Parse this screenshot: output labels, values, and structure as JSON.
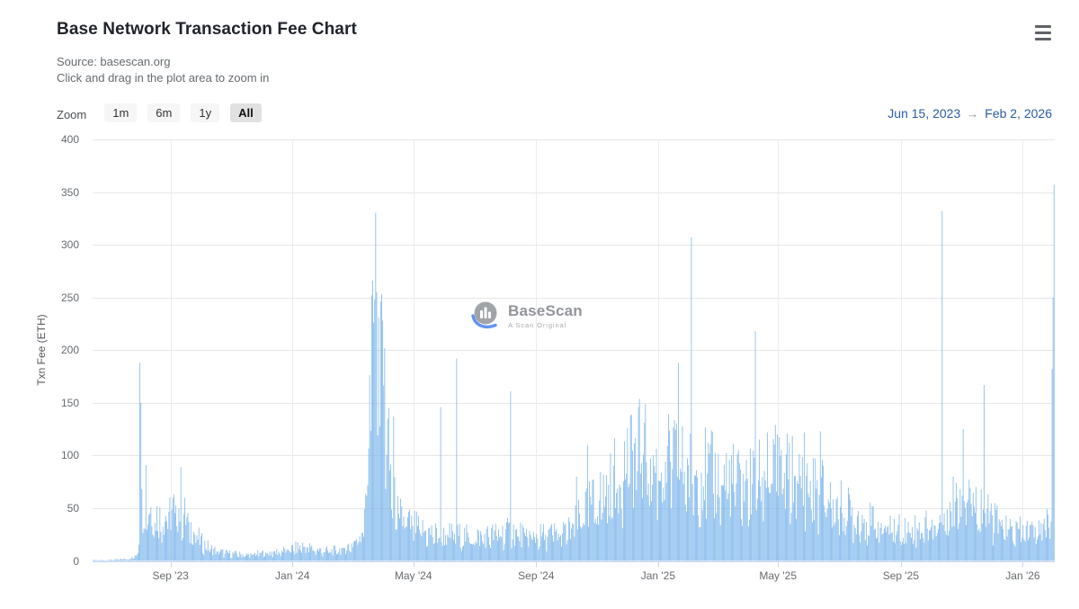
{
  "header": {
    "title": "Base Network Transaction Fee Chart"
  },
  "subtitle": {
    "source": "Source: basescan.org",
    "hint": "Click and drag in the plot area to zoom in"
  },
  "toolbar": {
    "zoom_label": "Zoom",
    "buttons": [
      {
        "label": "1m",
        "active": false
      },
      {
        "label": "6m",
        "active": false
      },
      {
        "label": "1y",
        "active": false
      },
      {
        "label": "All",
        "active": true
      }
    ]
  },
  "range": {
    "start": "Jun 15, 2023",
    "arrow": "→",
    "end": "Feb 2, 2026"
  },
  "watermark": {
    "name": "BaseScan",
    "tagline": "A Scan Original"
  },
  "chart_data": {
    "type": "bar",
    "title": "Base Network Transaction Fee Chart",
    "xlabel": "",
    "ylabel": "Txn Fee (ETH)",
    "unit": "ETH",
    "ylim": [
      0,
      400
    ],
    "grid": true,
    "legend": false,
    "y_ticks": [
      0,
      50,
      100,
      150,
      200,
      250,
      300,
      350,
      400
    ],
    "x_range": {
      "start": "Jun 15, 2023",
      "end": "Feb 2, 2026",
      "days": 963
    },
    "x_ticks": [
      {
        "label": "Sep '23",
        "day": 78
      },
      {
        "label": "Jan '24",
        "day": 200
      },
      {
        "label": "May '24",
        "day": 321
      },
      {
        "label": "Sep '24",
        "day": 444
      },
      {
        "label": "Jan '25",
        "day": 566
      },
      {
        "label": "May '25",
        "day": 686
      },
      {
        "label": "Sep '25",
        "day": 809
      },
      {
        "label": "Jan '26",
        "day": 931
      }
    ],
    "notable_peaks": [
      {
        "date": "Aug 2023",
        "value": 188
      },
      {
        "date": "Mar 2024",
        "value": 266
      },
      {
        "date": "Jun 2024",
        "value": 192
      },
      {
        "date": "Aug 2024",
        "value": 161
      },
      {
        "date": "Jan 2025",
        "value": 188
      },
      {
        "date": "Feb 2025",
        "value": 307
      },
      {
        "date": "Apr 2025",
        "value": 218
      },
      {
        "date": "Oct 2025",
        "value": 332
      },
      {
        "date": "Nov 2025",
        "value": 167
      },
      {
        "date": "Feb 2026",
        "value": 357
      }
    ],
    "baseline_anchors": [
      [
        0,
        0.6
      ],
      [
        20,
        1
      ],
      [
        36,
        2
      ],
      [
        42,
        4
      ],
      [
        45,
        10
      ],
      [
        48,
        55
      ],
      [
        54,
        60
      ],
      [
        60,
        52
      ],
      [
        66,
        44
      ],
      [
        72,
        46
      ],
      [
        78,
        50
      ],
      [
        84,
        56
      ],
      [
        90,
        50
      ],
      [
        96,
        38
      ],
      [
        102,
        28
      ],
      [
        108,
        20
      ],
      [
        114,
        15
      ],
      [
        122,
        11
      ],
      [
        132,
        8
      ],
      [
        144,
        7
      ],
      [
        156,
        6
      ],
      [
        168,
        8
      ],
      [
        182,
        9
      ],
      [
        194,
        11
      ],
      [
        202,
        13
      ],
      [
        210,
        15
      ],
      [
        218,
        13
      ],
      [
        226,
        11
      ],
      [
        236,
        10
      ],
      [
        246,
        11
      ],
      [
        254,
        14
      ],
      [
        260,
        18
      ],
      [
        266,
        26
      ],
      [
        271,
        40
      ],
      [
        274,
        80
      ],
      [
        277,
        160
      ],
      [
        280,
        225
      ],
      [
        283,
        238
      ],
      [
        286,
        222
      ],
      [
        289,
        195
      ],
      [
        292,
        155
      ],
      [
        295,
        118
      ],
      [
        298,
        88
      ],
      [
        301,
        62
      ],
      [
        305,
        48
      ],
      [
        310,
        42
      ],
      [
        316,
        38
      ],
      [
        324,
        34
      ],
      [
        332,
        30
      ],
      [
        340,
        28
      ],
      [
        350,
        26
      ],
      [
        360,
        27
      ],
      [
        370,
        26
      ],
      [
        380,
        24
      ],
      [
        390,
        25
      ],
      [
        400,
        27
      ],
      [
        410,
        29
      ],
      [
        420,
        30
      ],
      [
        430,
        27
      ],
      [
        440,
        25
      ],
      [
        450,
        26
      ],
      [
        460,
        28
      ],
      [
        470,
        28
      ],
      [
        478,
        32
      ],
      [
        486,
        42
      ],
      [
        494,
        55
      ],
      [
        502,
        60
      ],
      [
        510,
        68
      ],
      [
        518,
        78
      ],
      [
        526,
        90
      ],
      [
        534,
        102
      ],
      [
        542,
        110
      ],
      [
        548,
        112
      ],
      [
        556,
        104
      ],
      [
        564,
        94
      ],
      [
        572,
        98
      ],
      [
        580,
        102
      ],
      [
        588,
        98
      ],
      [
        596,
        92
      ],
      [
        604,
        90
      ],
      [
        612,
        94
      ],
      [
        620,
        88
      ],
      [
        628,
        84
      ],
      [
        636,
        88
      ],
      [
        644,
        80
      ],
      [
        652,
        76
      ],
      [
        660,
        80
      ],
      [
        668,
        84
      ],
      [
        675,
        92
      ],
      [
        682,
        94
      ],
      [
        690,
        87
      ],
      [
        698,
        89
      ],
      [
        706,
        83
      ],
      [
        714,
        79
      ],
      [
        722,
        73
      ],
      [
        730,
        73
      ],
      [
        738,
        64
      ],
      [
        746,
        57
      ],
      [
        754,
        52
      ],
      [
        762,
        48
      ],
      [
        772,
        43
      ],
      [
        782,
        38
      ],
      [
        792,
        35
      ],
      [
        802,
        33
      ],
      [
        812,
        32
      ],
      [
        822,
        34
      ],
      [
        832,
        35
      ],
      [
        842,
        37
      ],
      [
        852,
        45
      ],
      [
        858,
        56
      ],
      [
        866,
        70
      ],
      [
        872,
        78
      ],
      [
        878,
        72
      ],
      [
        884,
        64
      ],
      [
        890,
        56
      ],
      [
        896,
        48
      ],
      [
        902,
        42
      ],
      [
        908,
        38
      ],
      [
        916,
        33
      ],
      [
        924,
        30
      ],
      [
        932,
        30
      ],
      [
        940,
        32
      ],
      [
        948,
        35
      ],
      [
        954,
        40
      ],
      [
        958,
        50
      ],
      [
        960,
        72
      ],
      [
        962,
        90
      ]
    ],
    "spikes": [
      [
        47,
        188
      ],
      [
        48,
        150
      ],
      [
        53,
        91
      ],
      [
        88,
        89
      ],
      [
        279,
        252
      ],
      [
        280,
        266
      ],
      [
        282,
        248
      ],
      [
        284,
        255
      ],
      [
        286,
        231
      ],
      [
        288,
        246
      ],
      [
        290,
        228
      ],
      [
        292,
        202
      ],
      [
        301,
        137
      ],
      [
        348,
        146
      ],
      [
        364,
        192
      ],
      [
        418,
        161
      ],
      [
        484,
        80
      ],
      [
        495,
        110
      ],
      [
        538,
        138
      ],
      [
        546,
        146
      ],
      [
        552,
        131
      ],
      [
        586,
        188
      ],
      [
        599,
        307
      ],
      [
        663,
        218
      ],
      [
        675,
        122
      ],
      [
        685,
        120
      ],
      [
        712,
        122
      ],
      [
        728,
        123
      ],
      [
        850,
        332
      ],
      [
        871,
        125
      ],
      [
        892,
        167
      ],
      [
        960,
        182
      ],
      [
        961,
        250
      ],
      [
        962,
        357
      ]
    ],
    "render": {
      "noise_min": 0.45,
      "noise_span": 0.95,
      "weekend_factor": 0.72,
      "seed": 13
    },
    "colors": {
      "bar": "#7cb5ec",
      "grid": "#e6e6e6",
      "axis": "#ccd6eb",
      "label": "#666b70",
      "link": "#2a5ca8"
    }
  }
}
